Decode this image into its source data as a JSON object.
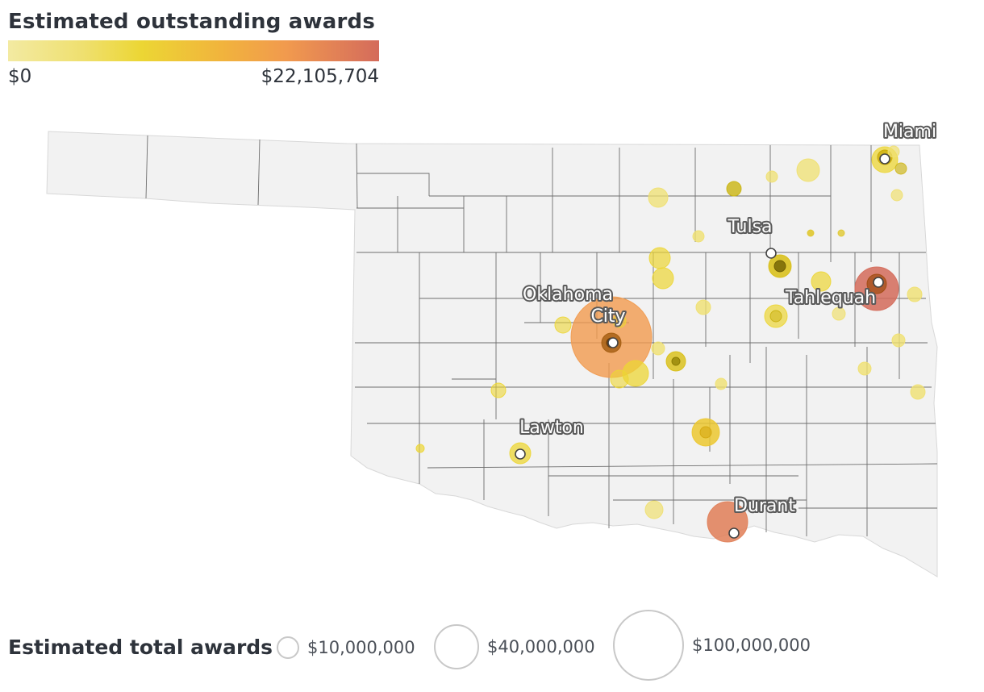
{
  "color_legend": {
    "title": "Estimated outstanding awards",
    "min_label": "$0",
    "max_label": "$22,105,704",
    "colors": [
      "#f3eaa2",
      "#ecd634",
      "#f19a4e",
      "#d46b5b"
    ]
  },
  "size_legend": {
    "title": "Estimated total awards",
    "items": [
      {
        "label": "$10,000,000",
        "value": 10000000
      },
      {
        "label": "$40,000,000",
        "value": 40000000
      },
      {
        "label": "$100,000,000",
        "value": 100000000
      }
    ]
  },
  "cities": [
    {
      "name": "Miami"
    },
    {
      "name": "Tulsa"
    },
    {
      "name": "Oklahoma City"
    },
    {
      "name": "Tahlequah"
    },
    {
      "name": "Lawton"
    },
    {
      "name": "Durant"
    }
  ],
  "colors": {
    "state_fill": "#f2f2f2",
    "county_border": "#6e6e6e",
    "low": "#ecd634",
    "high": "#d46b5b"
  }
}
